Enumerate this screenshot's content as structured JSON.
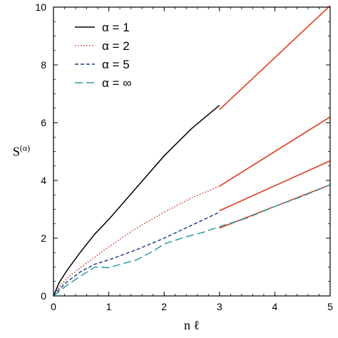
{
  "chart_data": {
    "type": "line",
    "xlabel": "n ℓ",
    "ylabel": "S(α)",
    "ylabel_base": "S",
    "ylabel_sup": "(α)",
    "xlim": [
      0,
      5
    ],
    "ylim": [
      0,
      10
    ],
    "xticks": [
      0,
      1,
      2,
      3,
      4,
      5
    ],
    "yticks": [
      0,
      2,
      4,
      6,
      8,
      10
    ],
    "xtick_labels": [
      "0",
      "1",
      "2",
      "3",
      "4",
      "5"
    ],
    "ytick_labels": [
      "0",
      "2",
      "4",
      "6",
      "8",
      "10"
    ],
    "grid": false,
    "legend_position": "top-left",
    "series": [
      {
        "name": "α = 1",
        "color": "#000000",
        "style": "solid",
        "x": [
          0,
          0.1,
          0.25,
          0.5,
          0.75,
          1.0,
          1.5,
          2.0,
          2.5,
          3.0
        ],
        "y": [
          0,
          0.45,
          0.9,
          1.55,
          2.15,
          2.65,
          3.75,
          4.85,
          5.8,
          6.6
        ]
      },
      {
        "name": "α = 2",
        "color": "#c0392b",
        "style": "dotted",
        "x": [
          0,
          0.1,
          0.25,
          0.5,
          0.75,
          1.0,
          1.5,
          2.0,
          2.5,
          3.0
        ],
        "y": [
          0,
          0.3,
          0.62,
          1.0,
          1.35,
          1.7,
          2.35,
          2.9,
          3.4,
          3.8
        ]
      },
      {
        "name": "α = 5",
        "color": "#1f3f8f",
        "style": "dashed",
        "x": [
          0,
          0.1,
          0.25,
          0.5,
          0.75,
          1.0,
          1.5,
          2.0,
          2.5,
          3.0
        ],
        "y": [
          0,
          0.22,
          0.5,
          0.85,
          1.1,
          1.25,
          1.6,
          2.0,
          2.45,
          2.9
        ]
      },
      {
        "name": "α = ∞",
        "color": "#2a9d9f",
        "style": "longdash",
        "x": [
          0,
          0.1,
          0.25,
          0.5,
          0.75,
          1.0,
          1.5,
          1.8,
          2.0,
          2.4,
          2.7,
          3.0,
          3.5,
          4.0,
          4.5,
          5.0
        ],
        "y": [
          0,
          0.15,
          0.38,
          0.7,
          1.0,
          0.98,
          1.25,
          1.55,
          1.8,
          2.05,
          2.2,
          2.4,
          2.7,
          3.1,
          3.45,
          3.85
        ]
      }
    ],
    "fits": [
      {
        "color": "#e03c1e",
        "x": [
          3.0,
          5.0
        ],
        "y": [
          6.45,
          10.05
        ]
      },
      {
        "color": "#e03c1e",
        "x": [
          3.0,
          5.0
        ],
        "y": [
          3.8,
          6.2
        ]
      },
      {
        "color": "#e03c1e",
        "x": [
          3.0,
          5.0
        ],
        "y": [
          2.95,
          4.68
        ]
      },
      {
        "color": "#e03c1e",
        "x": [
          3.0,
          5.0
        ],
        "y": [
          2.35,
          3.85
        ]
      }
    ]
  }
}
